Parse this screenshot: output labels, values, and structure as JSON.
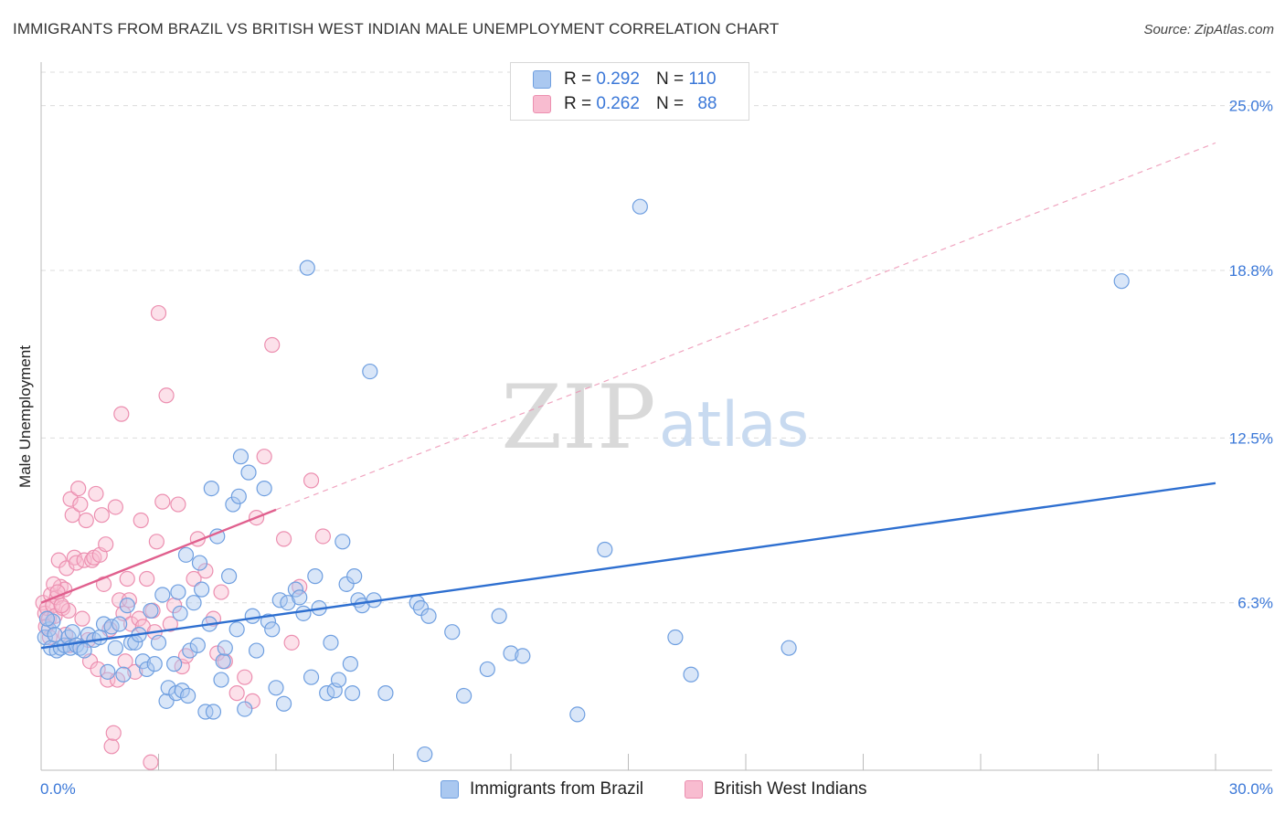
{
  "title": "IMMIGRANTS FROM BRAZIL VS BRITISH WEST INDIAN MALE UNEMPLOYMENT CORRELATION CHART",
  "source": "Source: ZipAtlas.com",
  "watermark": {
    "zip": "ZIP",
    "atlas": "atlas"
  },
  "legend": {
    "r_label": "R =",
    "n_label": "N =",
    "entries": [
      {
        "r": "0.292",
        "n": "110"
      },
      {
        "r": "0.262",
        "n": "88"
      }
    ]
  },
  "colors": {
    "blue_fill": "#aac8f0",
    "blue_stroke": "#6f9fe0",
    "blue_line": "#2e6fd0",
    "pink_fill": "#f8bcd0",
    "pink_stroke": "#ec8fb0",
    "pink_line": "#e0608e",
    "tick_text": "#3b78d8",
    "grid": "#dcdcdc"
  },
  "chart_data": {
    "type": "scatter",
    "title": "IMMIGRANTS FROM BRAZIL VS BRITISH WEST INDIAN MALE UNEMPLOYMENT CORRELATION CHART",
    "xlabel": "",
    "ylabel": "Male Unemployment",
    "xlim": [
      0,
      30
    ],
    "ylim": [
      0,
      26.5
    ],
    "x_tick_labels": [
      "0.0%",
      "30.0%"
    ],
    "y_ticks": [
      6.3,
      12.5,
      18.8,
      25.0
    ],
    "y_tick_labels": [
      "6.3%",
      "12.5%",
      "18.8%",
      "25.0%"
    ],
    "x_minor_ticks": [
      0,
      3,
      6,
      9,
      12,
      15,
      18,
      21,
      24,
      27,
      30
    ],
    "legend_position": "top-center",
    "bottom_legend": [
      "Immigrants from Brazil",
      "British West Indians"
    ],
    "series": [
      {
        "name": "Immigrants from Brazil",
        "color": "blue",
        "trend": {
          "x": [
            0,
            30
          ],
          "y": [
            4.6,
            10.8
          ],
          "style": "solid"
        },
        "points": [
          [
            0.1,
            5.0
          ],
          [
            0.2,
            5.3
          ],
          [
            0.25,
            4.6
          ],
          [
            0.3,
            5.6
          ],
          [
            0.35,
            5.1
          ],
          [
            0.4,
            4.5
          ],
          [
            0.5,
            4.6
          ],
          [
            0.6,
            4.7
          ],
          [
            0.7,
            5.0
          ],
          [
            0.75,
            4.6
          ],
          [
            0.8,
            5.2
          ],
          [
            0.9,
            4.7
          ],
          [
            1.0,
            4.6
          ],
          [
            1.1,
            4.5
          ],
          [
            1.2,
            5.1
          ],
          [
            1.35,
            4.9
          ],
          [
            1.5,
            5.0
          ],
          [
            1.6,
            5.5
          ],
          [
            1.7,
            3.7
          ],
          [
            1.8,
            5.4
          ],
          [
            1.9,
            4.6
          ],
          [
            2.0,
            5.5
          ],
          [
            2.1,
            3.6
          ],
          [
            2.2,
            6.2
          ],
          [
            2.3,
            4.8
          ],
          [
            2.4,
            4.8
          ],
          [
            2.5,
            5.1
          ],
          [
            2.6,
            4.1
          ],
          [
            2.7,
            3.8
          ],
          [
            2.8,
            6.0
          ],
          [
            2.9,
            4.0
          ],
          [
            3.0,
            4.8
          ],
          [
            3.1,
            6.6
          ],
          [
            3.2,
            2.6
          ],
          [
            3.25,
            3.1
          ],
          [
            3.4,
            4.0
          ],
          [
            3.45,
            2.9
          ],
          [
            3.5,
            6.7
          ],
          [
            3.55,
            5.9
          ],
          [
            3.6,
            3.0
          ],
          [
            3.7,
            8.1
          ],
          [
            3.75,
            2.8
          ],
          [
            3.8,
            4.5
          ],
          [
            3.9,
            6.3
          ],
          [
            4.0,
            4.7
          ],
          [
            4.05,
            7.8
          ],
          [
            4.1,
            6.8
          ],
          [
            4.2,
            2.2
          ],
          [
            4.3,
            5.5
          ],
          [
            4.35,
            10.6
          ],
          [
            4.4,
            2.2
          ],
          [
            4.5,
            8.8
          ],
          [
            4.6,
            3.4
          ],
          [
            4.65,
            4.1
          ],
          [
            4.7,
            4.6
          ],
          [
            4.8,
            7.3
          ],
          [
            4.9,
            10.0
          ],
          [
            5.0,
            5.3
          ],
          [
            5.05,
            10.3
          ],
          [
            5.1,
            11.8
          ],
          [
            5.2,
            2.3
          ],
          [
            5.3,
            11.2
          ],
          [
            5.4,
            5.8
          ],
          [
            5.5,
            4.5
          ],
          [
            5.7,
            10.6
          ],
          [
            5.8,
            5.6
          ],
          [
            5.9,
            5.3
          ],
          [
            6.0,
            3.1
          ],
          [
            6.1,
            6.4
          ],
          [
            6.2,
            2.5
          ],
          [
            6.3,
            6.3
          ],
          [
            6.5,
            6.8
          ],
          [
            6.6,
            6.5
          ],
          [
            6.7,
            5.9
          ],
          [
            6.8,
            18.9
          ],
          [
            6.9,
            3.5
          ],
          [
            7.0,
            7.3
          ],
          [
            7.1,
            6.1
          ],
          [
            7.3,
            2.9
          ],
          [
            7.4,
            4.8
          ],
          [
            7.5,
            3.0
          ],
          [
            7.6,
            3.4
          ],
          [
            7.8,
            7.0
          ],
          [
            7.9,
            4.0
          ],
          [
            7.95,
            2.9
          ],
          [
            7.7,
            8.6
          ],
          [
            8.0,
            7.3
          ],
          [
            8.1,
            6.4
          ],
          [
            8.2,
            6.2
          ],
          [
            8.4,
            15.0
          ],
          [
            8.5,
            6.4
          ],
          [
            8.8,
            2.9
          ],
          [
            9.6,
            6.3
          ],
          [
            9.7,
            6.1
          ],
          [
            9.9,
            5.8
          ],
          [
            9.8,
            0.6
          ],
          [
            10.5,
            5.2
          ],
          [
            10.8,
            2.8
          ],
          [
            11.4,
            3.8
          ],
          [
            11.7,
            5.8
          ],
          [
            12.0,
            4.4
          ],
          [
            12.3,
            4.3
          ],
          [
            13.7,
            2.1
          ],
          [
            14.4,
            8.3
          ],
          [
            15.3,
            21.2
          ],
          [
            16.2,
            5.0
          ],
          [
            16.6,
            3.6
          ],
          [
            19.1,
            4.6
          ],
          [
            27.6,
            18.4
          ],
          [
            0.15,
            5.7
          ]
        ]
      },
      {
        "name": "British West Indians",
        "color": "pink",
        "trend": {
          "x": [
            0,
            6.0
          ],
          "y": [
            6.3,
            9.8
          ],
          "style": "solid",
          "extension": {
            "x": [
              6.0,
              30
            ],
            "y": [
              9.8,
              23.6
            ],
            "style": "dashed"
          }
        },
        "points": [
          [
            0.05,
            6.3
          ],
          [
            0.1,
            5.9
          ],
          [
            0.15,
            6.1
          ],
          [
            0.2,
            5.7
          ],
          [
            0.25,
            6.6
          ],
          [
            0.3,
            6.2
          ],
          [
            0.35,
            5.8
          ],
          [
            0.4,
            6.5
          ],
          [
            0.45,
            7.9
          ],
          [
            0.5,
            6.9
          ],
          [
            0.55,
            6.1
          ],
          [
            0.6,
            6.8
          ],
          [
            0.65,
            7.6
          ],
          [
            0.7,
            6.0
          ],
          [
            0.75,
            10.2
          ],
          [
            0.8,
            9.6
          ],
          [
            0.85,
            8.0
          ],
          [
            0.9,
            7.8
          ],
          [
            0.95,
            10.6
          ],
          [
            1.0,
            10.0
          ],
          [
            1.05,
            5.7
          ],
          [
            1.1,
            7.9
          ],
          [
            1.15,
            9.4
          ],
          [
            1.2,
            4.9
          ],
          [
            1.25,
            4.1
          ],
          [
            1.3,
            7.9
          ],
          [
            1.35,
            8.0
          ],
          [
            1.4,
            10.4
          ],
          [
            1.45,
            3.8
          ],
          [
            1.5,
            8.1
          ],
          [
            1.55,
            9.6
          ],
          [
            1.6,
            7.0
          ],
          [
            1.65,
            8.5
          ],
          [
            1.7,
            3.4
          ],
          [
            1.75,
            5.3
          ],
          [
            1.8,
            0.9
          ],
          [
            1.85,
            1.4
          ],
          [
            1.9,
            9.9
          ],
          [
            1.95,
            3.4
          ],
          [
            2.0,
            6.4
          ],
          [
            2.05,
            13.4
          ],
          [
            2.1,
            5.9
          ],
          [
            2.15,
            4.1
          ],
          [
            2.2,
            7.2
          ],
          [
            2.25,
            6.4
          ],
          [
            2.3,
            5.5
          ],
          [
            2.4,
            3.7
          ],
          [
            2.5,
            5.7
          ],
          [
            2.55,
            9.4
          ],
          [
            2.6,
            5.4
          ],
          [
            2.7,
            7.2
          ],
          [
            2.8,
            0.3
          ],
          [
            2.85,
            6.0
          ],
          [
            2.9,
            5.2
          ],
          [
            2.95,
            8.6
          ],
          [
            3.0,
            17.2
          ],
          [
            3.1,
            10.1
          ],
          [
            3.2,
            14.1
          ],
          [
            3.3,
            5.5
          ],
          [
            3.4,
            6.2
          ],
          [
            3.5,
            10.0
          ],
          [
            3.6,
            3.9
          ],
          [
            3.7,
            4.3
          ],
          [
            3.9,
            7.2
          ],
          [
            4.0,
            8.7
          ],
          [
            4.2,
            7.5
          ],
          [
            4.4,
            5.7
          ],
          [
            4.5,
            4.4
          ],
          [
            4.6,
            6.7
          ],
          [
            4.7,
            4.1
          ],
          [
            5.0,
            2.9
          ],
          [
            5.2,
            3.5
          ],
          [
            5.4,
            2.6
          ],
          [
            5.5,
            9.5
          ],
          [
            5.7,
            11.8
          ],
          [
            5.9,
            16.0
          ],
          [
            6.2,
            8.7
          ],
          [
            6.4,
            4.8
          ],
          [
            6.6,
            6.9
          ],
          [
            6.9,
            10.9
          ],
          [
            7.2,
            8.8
          ],
          [
            0.12,
            5.4
          ],
          [
            0.22,
            5.0
          ],
          [
            0.32,
            7.0
          ],
          [
            0.42,
            6.7
          ],
          [
            0.52,
            6.2
          ],
          [
            0.62,
            5.1
          ],
          [
            0.72,
            4.7
          ]
        ]
      }
    ]
  }
}
